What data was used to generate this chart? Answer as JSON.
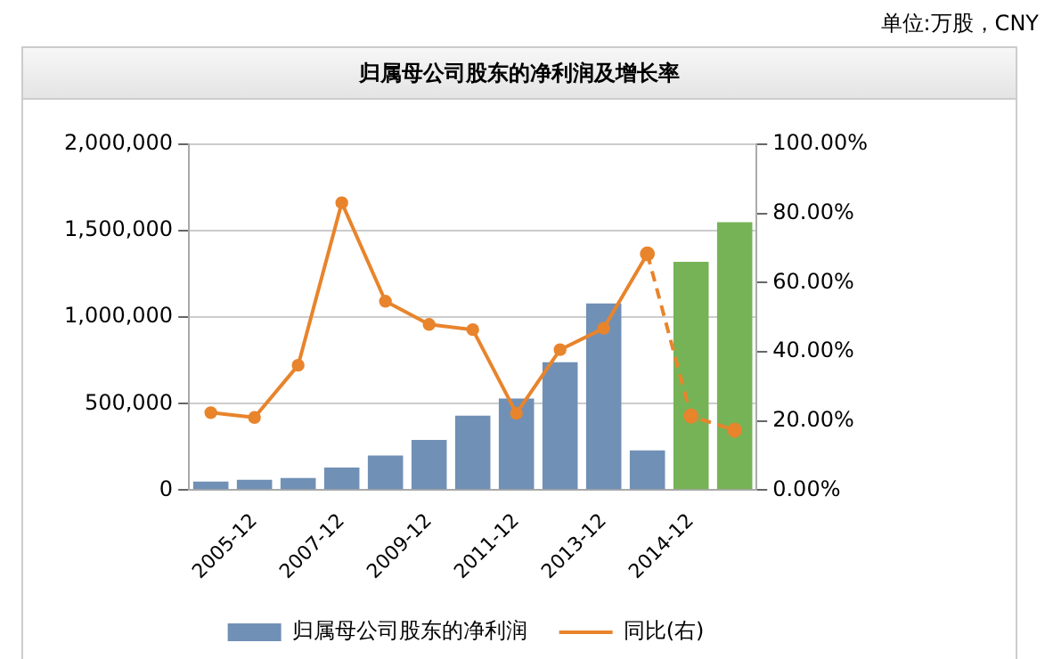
{
  "chart_data": {
    "type": "bar",
    "title": "归属母公司股东的净利润及增长率",
    "annotations": [
      "单位:万股，CNY"
    ],
    "categories": [
      null,
      "2005-12",
      null,
      "2007-12",
      null,
      "2009-12",
      null,
      "2011-12",
      null,
      "2013-12",
      null,
      "2014-12",
      null
    ],
    "series": [
      {
        "name": "归属母公司股东的净利润",
        "color": "#7190b5",
        "colors": [
          "#7190b5",
          "#7190b5",
          "#7190b5",
          "#7190b5",
          "#7190b5",
          "#7190b5",
          "#7190b5",
          "#7190b5",
          "#7190b5",
          "#7190b5",
          "#7190b5",
          "#76b356",
          "#76b356"
        ],
        "values": [
          50000,
          60000,
          70000,
          130000,
          200000,
          290000,
          430000,
          530000,
          740000,
          1080000,
          230000,
          1320000,
          1550000
        ]
      },
      {
        "type": "line",
        "name": "同比(右)",
        "axis": "y2",
        "color": "#e8842c",
        "marker": "circle",
        "line_style": "solid",
        "values": [
          22.4,
          21.0,
          36.1,
          83.1,
          54.6,
          47.9,
          46.4,
          22.2,
          40.6,
          46.8,
          68.3,
          null,
          null
        ]
      },
      {
        "type": "line",
        "axis": "y2",
        "color": "#e8842c",
        "marker": "circle",
        "line_style": "dashed",
        "values": [
          null,
          null,
          null,
          null,
          null,
          null,
          null,
          null,
          null,
          null,
          68.3,
          21.4,
          17.3
        ]
      }
    ],
    "ylim": [
      0,
      2000000
    ],
    "yticks": [
      {
        "value": 0,
        "label": "0"
      },
      {
        "value": 500000,
        "label": "500,000"
      },
      {
        "value": 1000000,
        "label": "1,000,000"
      },
      {
        "value": 1500000,
        "label": "1,500,000"
      },
      {
        "value": 2000000,
        "label": "2,000,000"
      }
    ],
    "y2lim": [
      0,
      100
    ],
    "y2ticks": [
      {
        "value": 0,
        "label": "0.00%"
      },
      {
        "value": 20,
        "label": "20.00%"
      },
      {
        "value": 40,
        "label": "40.00%"
      },
      {
        "value": 60,
        "label": "60.00%"
      },
      {
        "value": 80,
        "label": "80.00%"
      },
      {
        "value": 100,
        "label": "100.00%"
      }
    ],
    "grid": "y",
    "legend": "bottom"
  }
}
